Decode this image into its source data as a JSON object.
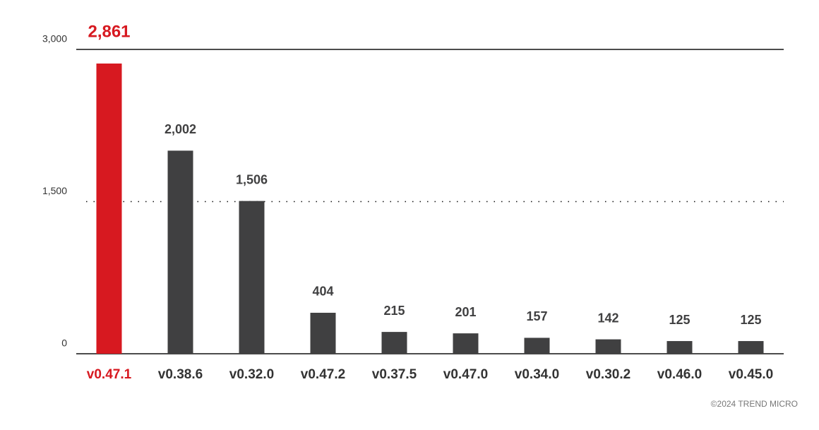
{
  "chart_data": {
    "type": "bar",
    "categories": [
      "v0.47.1",
      "v0.38.6",
      "v0.32.0",
      "v0.47.2",
      "v0.37.5",
      "v0.47.0",
      "v0.34.0",
      "v0.30.2",
      "v0.46.0",
      "v0.45.0"
    ],
    "values": [
      2861,
      2002,
      1506,
      404,
      215,
      201,
      157,
      142,
      125,
      125
    ],
    "value_labels": [
      "2,861",
      "2,002",
      "1,506",
      "404",
      "215",
      "201",
      "157",
      "142",
      "125",
      "125"
    ],
    "colors": [
      "#d71920",
      "#404041",
      "#404041",
      "#404041",
      "#404041",
      "#404041",
      "#404041",
      "#404041",
      "#404041",
      "#404041"
    ],
    "ylim": [
      0,
      3000
    ],
    "yticks": [
      0,
      {
        "value": 1500,
        "label": "1,500"
      },
      {
        "value": 3000,
        "label": "3,000"
      }
    ],
    "grid": true,
    "credit": "©2024 TREND MICRO"
  }
}
